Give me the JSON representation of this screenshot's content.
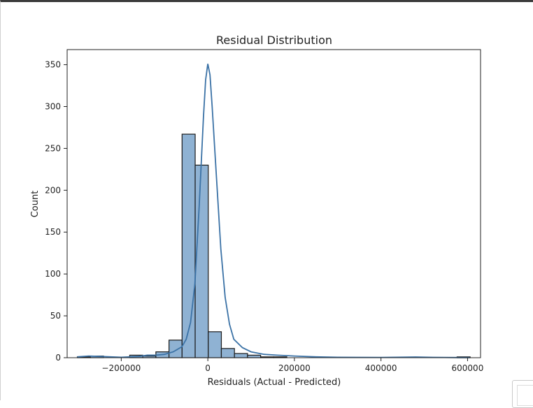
{
  "chart_data": {
    "type": "bar",
    "title": "Residual Distribution",
    "xlabel": "Residuals (Actual - Predicted)",
    "ylabel": "Count",
    "xlim": [
      -325000,
      630000
    ],
    "ylim": [
      0,
      368
    ],
    "xticks": [
      {
        "value": -200000,
        "label": "−200000"
      },
      {
        "value": 0,
        "label": "0"
      },
      {
        "value": 200000,
        "label": "200000"
      },
      {
        "value": 400000,
        "label": "400000"
      },
      {
        "value": 600000,
        "label": "600000"
      }
    ],
    "yticks": [
      0,
      50,
      100,
      150,
      200,
      250,
      300,
      350
    ],
    "bin_start": -301500,
    "bin_width": 30250,
    "counts": [
      1,
      2,
      0,
      0,
      3,
      2,
      7,
      21,
      267,
      230,
      31,
      11,
      5,
      3,
      1,
      1,
      0,
      0,
      0,
      0,
      0,
      0,
      0,
      0,
      0,
      0,
      0,
      0,
      0,
      1
    ],
    "kde": {
      "x": [
        -301500,
        -275000,
        -250000,
        -200000,
        -160000,
        -140000,
        -120000,
        -100000,
        -80000,
        -60000,
        -50000,
        -40000,
        -30000,
        -20000,
        -10000,
        -5000,
        0,
        5000,
        10000,
        20000,
        30000,
        40000,
        50000,
        60000,
        80000,
        100000,
        130000,
        160000,
        200000,
        250000,
        300000,
        400000,
        450000,
        480000,
        520000,
        580000,
        605000
      ],
      "y": [
        1,
        2,
        1.5,
        0.5,
        1.5,
        3,
        3,
        4,
        7,
        13,
        22,
        42,
        88,
        180,
        288,
        332,
        351,
        338,
        300,
        215,
        130,
        72,
        40,
        22,
        12,
        7,
        4,
        3,
        2,
        1,
        0.5,
        0.3,
        0.6,
        0.8,
        0.4,
        0.2,
        0.2
      ]
    },
    "grid": false,
    "colors": {
      "bar_fill": "#8fb2d3",
      "bar_edge": "#1a1a1a",
      "kde_line": "#3b72a6"
    }
  }
}
